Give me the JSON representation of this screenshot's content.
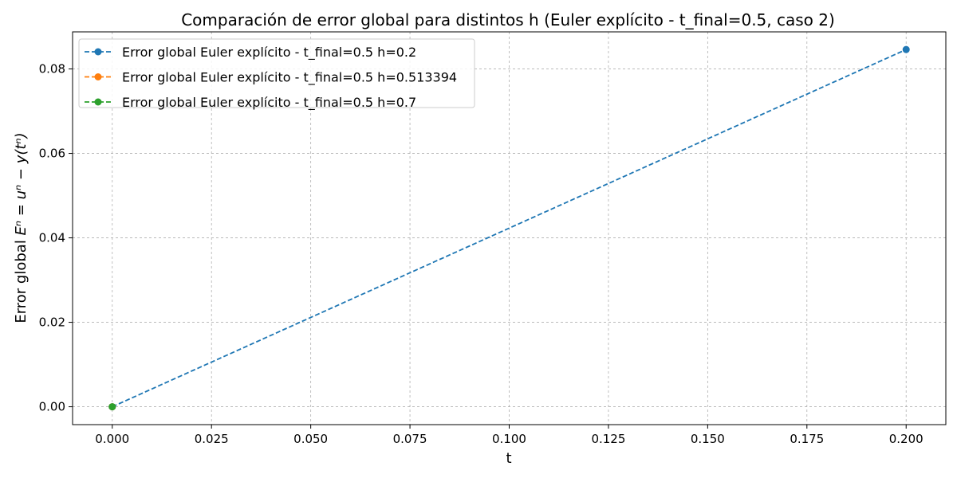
{
  "chart_data": {
    "type": "line",
    "title": "Comparación de error global para distintos h (Euler explícito - t_final=0.5, caso 2)",
    "xlabel": "t",
    "ylabel_prefix": "Error global ",
    "ylabel_math": "Eⁿ = uⁿ − y(tⁿ)",
    "xlim": [
      -0.01,
      0.21
    ],
    "ylim": [
      -0.00423,
      0.08878
    ],
    "xticks": [
      0.0,
      0.025,
      0.05,
      0.075,
      0.1,
      0.125,
      0.15,
      0.175,
      0.2
    ],
    "xtick_labels": [
      "0.000",
      "0.025",
      "0.050",
      "0.075",
      "0.100",
      "0.125",
      "0.150",
      "0.175",
      "0.200"
    ],
    "yticks": [
      0.0,
      0.02,
      0.04,
      0.06,
      0.08
    ],
    "ytick_labels": [
      "0.00",
      "0.02",
      "0.04",
      "0.06",
      "0.08"
    ],
    "grid": true,
    "legend_position": "top-left",
    "series": [
      {
        "name": "Error global Euler explícito - t_final=0.5 h=0.2",
        "color": "#1f77b4",
        "x": [
          0.0,
          0.2
        ],
        "y": [
          0.0,
          0.0846
        ]
      },
      {
        "name": "Error global Euler explícito - t_final=0.5 h=0.513394",
        "color": "#ff7f0e",
        "x": [
          0.0
        ],
        "y": [
          0.0
        ]
      },
      {
        "name": "Error global Euler explícito - t_final=0.5 h=0.7",
        "color": "#2ca02c",
        "x": [
          0.0
        ],
        "y": [
          0.0
        ]
      }
    ]
  }
}
